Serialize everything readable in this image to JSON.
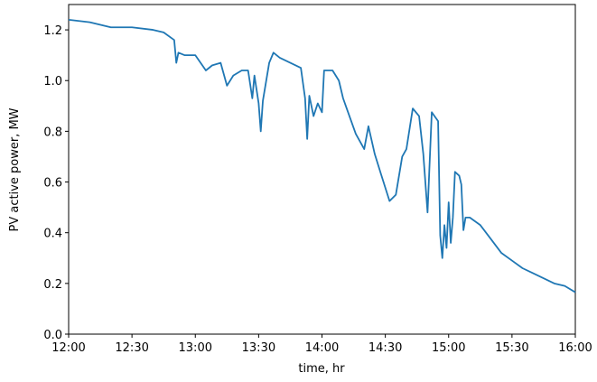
{
  "chart_data": {
    "type": "line",
    "xlabel": "time, hr",
    "ylabel": "PV active power, MW",
    "x": [
      "12:00",
      "12:10",
      "12:20",
      "12:30",
      "12:40",
      "12:45",
      "12:50",
      "12:51",
      "12:52",
      "12:55",
      "13:00",
      "13:05",
      "13:08",
      "13:12",
      "13:15",
      "13:18",
      "13:22",
      "13:25",
      "13:27",
      "13:28",
      "13:30",
      "13:31",
      "13:32",
      "13:35",
      "13:37",
      "13:40",
      "13:45",
      "13:50",
      "13:52",
      "13:53",
      "13:54",
      "13:56",
      "13:58",
      "14:00",
      "14:01",
      "14:05",
      "14:08",
      "14:10",
      "14:13",
      "14:16",
      "14:20",
      "14:22",
      "14:25",
      "14:28",
      "14:32",
      "14:35",
      "14:38",
      "14:40",
      "14:43",
      "14:46",
      "14:48",
      "14:50",
      "14:52",
      "14:55",
      "14:56",
      "14:57",
      "14:58",
      "14:59",
      "15:00",
      "15:01",
      "15:02",
      "15:03",
      "15:05",
      "15:06",
      "15:07",
      "15:08",
      "15:10",
      "15:15",
      "15:20",
      "15:25",
      "15:30",
      "15:35",
      "15:40",
      "15:45",
      "15:50",
      "15:55",
      "16:00"
    ],
    "series": [
      {
        "name": "PV active power",
        "color": "#1f77b4",
        "values": [
          1.24,
          1.23,
          1.21,
          1.21,
          1.2,
          1.19,
          1.16,
          1.07,
          1.11,
          1.1,
          1.1,
          1.04,
          1.06,
          1.07,
          0.98,
          1.02,
          1.04,
          1.04,
          0.93,
          1.02,
          0.91,
          0.8,
          0.92,
          1.07,
          1.11,
          1.09,
          1.07,
          1.05,
          0.93,
          0.77,
          0.94,
          0.86,
          0.91,
          0.875,
          1.04,
          1.04,
          1.0,
          0.93,
          0.86,
          0.79,
          0.73,
          0.82,
          0.71,
          0.63,
          0.525,
          0.55,
          0.7,
          0.73,
          0.89,
          0.86,
          0.71,
          0.48,
          0.875,
          0.84,
          0.39,
          0.3,
          0.43,
          0.34,
          0.52,
          0.36,
          0.46,
          0.64,
          0.625,
          0.59,
          0.41,
          0.46,
          0.46,
          0.43,
          0.375,
          0.32,
          0.29,
          0.26,
          0.24,
          0.22,
          0.2,
          0.19,
          0.165
        ]
      }
    ],
    "xlim": [
      "12:00",
      "16:00"
    ],
    "xticks": [
      "12:00",
      "12:30",
      "13:00",
      "13:30",
      "14:00",
      "14:30",
      "15:00",
      "15:30",
      "16:00"
    ],
    "ylim": [
      0,
      1.3
    ],
    "yticks": [
      {
        "value": 0,
        "label": "0.0"
      },
      0.2,
      0.4,
      0.6,
      0.8,
      {
        "value": 1,
        "label": "1.0"
      },
      1.2
    ],
    "grid": false
  }
}
